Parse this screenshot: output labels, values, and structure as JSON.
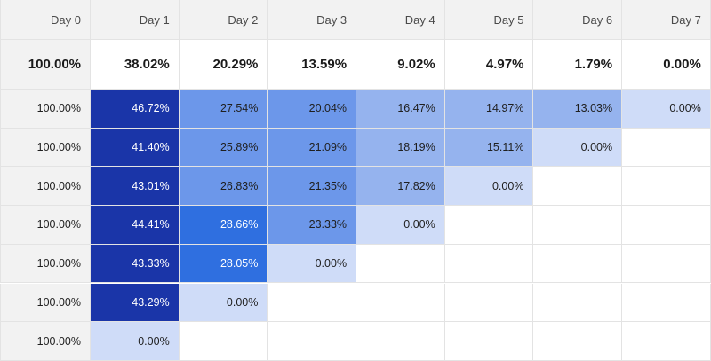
{
  "header": [
    "Day 0",
    "Day 1",
    "Day 2",
    "Day 3",
    "Day 4",
    "Day 5",
    "Day 6",
    "Day 7"
  ],
  "totals": [
    "100.00%",
    "38.02%",
    "20.29%",
    "13.59%",
    "9.02%",
    "4.97%",
    "1.79%",
    "0.00%"
  ],
  "rows": [
    [
      "100.00%",
      "46.72%",
      "27.54%",
      "20.04%",
      "16.47%",
      "14.97%",
      "13.03%",
      "0.00%"
    ],
    [
      "100.00%",
      "41.40%",
      "25.89%",
      "21.09%",
      "18.19%",
      "15.11%",
      "0.00%",
      ""
    ],
    [
      "100.00%",
      "43.01%",
      "26.83%",
      "21.35%",
      "17.82%",
      "0.00%",
      "",
      ""
    ],
    [
      "100.00%",
      "44.41%",
      "28.66%",
      "23.33%",
      "0.00%",
      "",
      "",
      ""
    ],
    [
      "100.00%",
      "43.33%",
      "28.05%",
      "0.00%",
      "",
      "",
      "",
      ""
    ],
    [
      "100.00%",
      "43.29%",
      "0.00%",
      "",
      "",
      "",
      "",
      ""
    ],
    [
      "100.00%",
      "0.00%",
      "",
      "",
      "",
      "",
      "",
      ""
    ]
  ],
  "colors": {
    "zero": "#cfdcf8",
    "bands": [
      {
        "min": 40,
        "color": "#1a35a8",
        "text": "#ffffff"
      },
      {
        "min": 28,
        "color": "#2f6fe0",
        "text": "#ffffff"
      },
      {
        "min": 19,
        "color": "#6c97ea",
        "text": "#1f1f1f"
      },
      {
        "min": 10,
        "color": "#95b3ee",
        "text": "#1f1f1f"
      },
      {
        "min": 0.01,
        "color": "#b7cbf3",
        "text": "#1f1f1f"
      }
    ]
  }
}
